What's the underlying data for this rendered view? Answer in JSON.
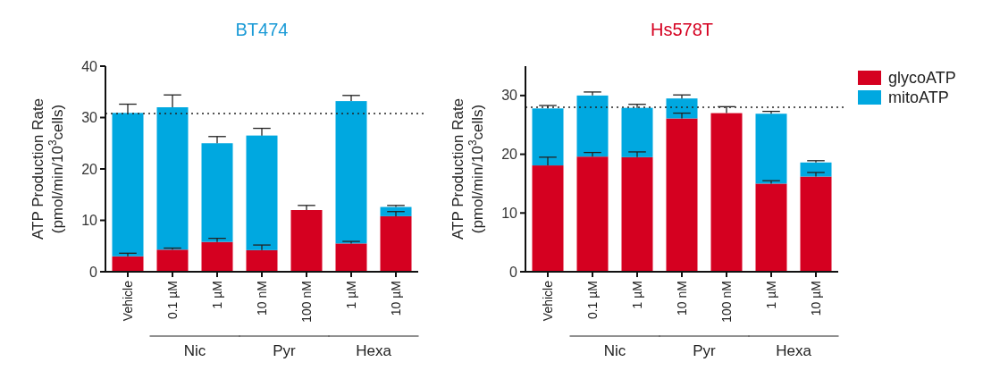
{
  "chart_data": [
    {
      "type": "bar",
      "title": "BT474",
      "ylabel": "ATP Production Rate\n(pmol/min/10$^{3}$cells)",
      "categories": [
        "Vehicle",
        "0.1 µM",
        "1 µM",
        "10 nM",
        "100 nM",
        "1 µM",
        "10 µM"
      ],
      "stacked": true,
      "series": [
        {
          "color": "#d50020",
          "values": [
            3.0,
            4.3,
            5.8,
            4.2,
            12.0,
            5.5,
            10.8
          ],
          "errors": [
            0.6,
            0.3,
            0.7,
            1.0,
            0.9,
            0.4,
            0.9
          ]
        },
        {
          "color": "#00a8e0",
          "values": [
            27.9,
            27.7,
            19.2,
            22.3,
            0,
            27.7,
            1.8
          ],
          "errors": [
            1.7,
            2.4,
            1.3,
            1.4,
            null,
            1.1,
            0.3
          ]
        }
      ],
      "ylim": [
        0,
        40
      ],
      "yticks": [
        0,
        10,
        20,
        30,
        40
      ],
      "ref_lines": [
        {
          "axis": "y",
          "value": 30.8,
          "line_style": "dotted"
        }
      ],
      "annotations": [
        "Nic",
        "Pyr",
        "Hexa"
      ],
      "legend": false,
      "grid": false
    },
    {
      "type": "bar",
      "title": "Hs578T",
      "ylabel": "ATP Production Rate\n(pmol/min/10$^{3}$cells)",
      "categories": [
        "Vehicle",
        "0.1 µM",
        "1 µM",
        "10 nM",
        "100 nM",
        "1 µM",
        "10 µM"
      ],
      "stacked": true,
      "series": [
        {
          "name": "glycoATP",
          "color": "#d50020",
          "values": [
            18.1,
            19.6,
            19.5,
            26.1,
            27.0,
            15.0,
            16.2
          ],
          "errors": [
            1.4,
            0.7,
            0.9,
            0.9,
            1.1,
            0.5,
            0.7
          ]
        },
        {
          "name": "mitoATP",
          "color": "#00a8e0",
          "values": [
            9.7,
            10.4,
            8.4,
            3.4,
            0,
            11.9,
            2.4
          ],
          "errors": [
            0.5,
            0.6,
            0.6,
            0.6,
            null,
            0.4,
            0.3
          ]
        }
      ],
      "ylim": [
        0,
        35
      ],
      "yticks": [
        0,
        10,
        20,
        30
      ],
      "ref_lines": [
        {
          "axis": "y",
          "value": 28,
          "line_style": "dotted"
        }
      ],
      "annotations": [
        "Nic",
        "Pyr",
        "Hexa"
      ],
      "legend": "right",
      "grid": false
    }
  ]
}
